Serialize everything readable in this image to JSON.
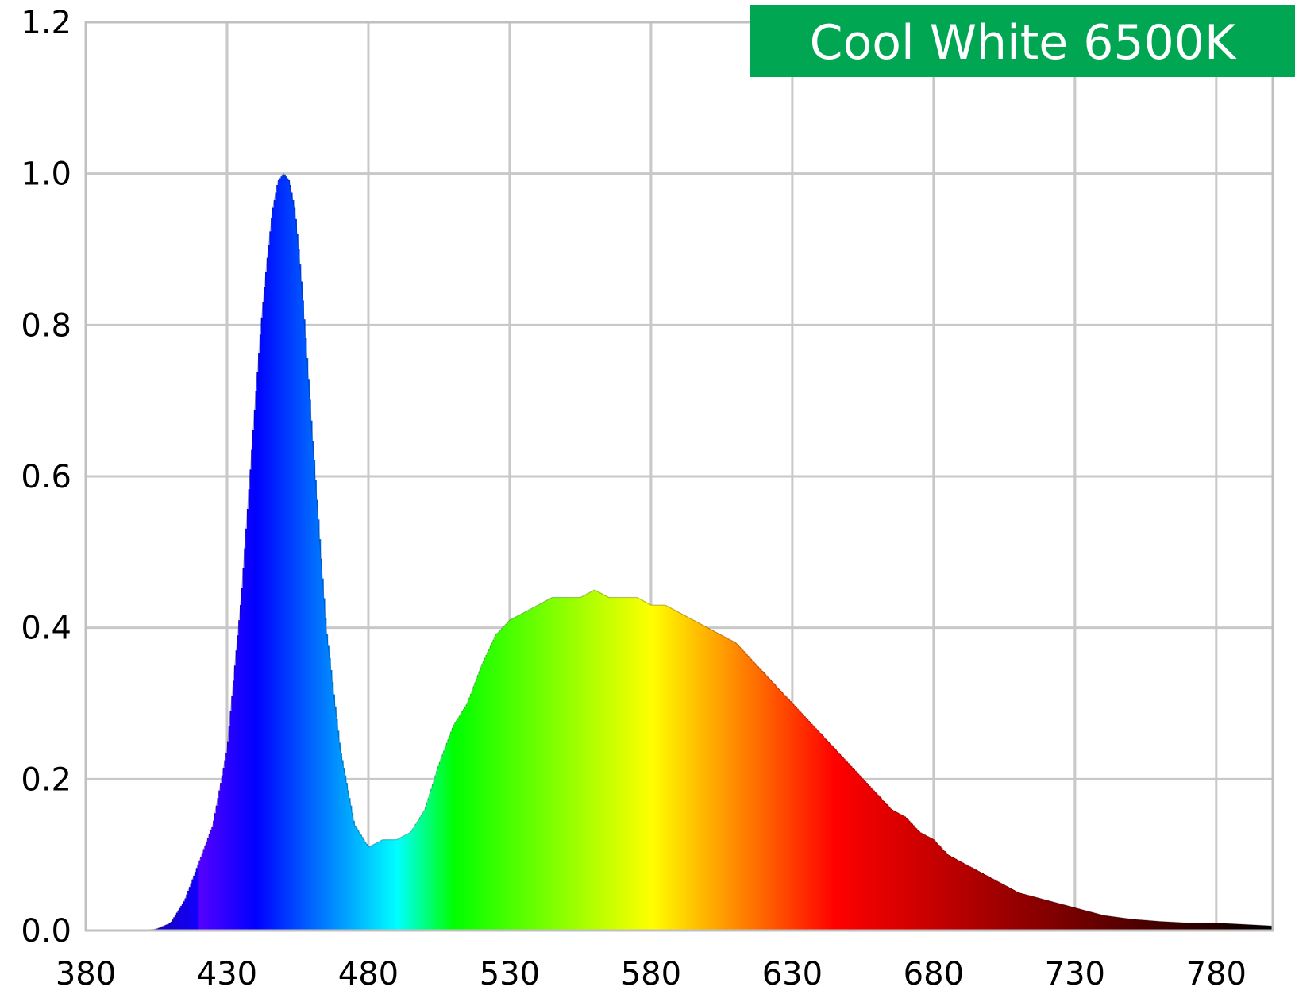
{
  "chart_data": {
    "type": "area",
    "title": "Cool White 6500K",
    "title_badge_color": "#00a651",
    "xlabel": "",
    "ylabel": "",
    "xlim": [
      380,
      800
    ],
    "ylim": [
      0,
      1.2
    ],
    "x_ticks": [
      380,
      430,
      480,
      530,
      580,
      630,
      680,
      730,
      780
    ],
    "y_ticks": [
      "0.0",
      "0.2",
      "0.4",
      "0.6",
      "0.8",
      "1.0",
      "1.2"
    ],
    "grid": true,
    "fill": "wavelength-colored spectrum",
    "series": [
      {
        "x": [
          380,
          385,
          390,
          395,
          400,
          405,
          410,
          415,
          420,
          425,
          430,
          435,
          440,
          442,
          444,
          446,
          448,
          450,
          452,
          454,
          456,
          458,
          460,
          465,
          470,
          475,
          480,
          485,
          490,
          495,
          500,
          505,
          510,
          515,
          520,
          525,
          530,
          535,
          540,
          545,
          550,
          555,
          560,
          565,
          570,
          575,
          580,
          585,
          590,
          595,
          600,
          605,
          610,
          615,
          620,
          625,
          630,
          635,
          640,
          645,
          650,
          655,
          660,
          665,
          670,
          675,
          680,
          685,
          690,
          695,
          700,
          710,
          720,
          730,
          740,
          750,
          760,
          770,
          780,
          790,
          800
        ],
        "y": [
          0.0,
          0.0,
          0.0,
          0.0,
          0.0,
          0.002,
          0.01,
          0.04,
          0.09,
          0.14,
          0.24,
          0.44,
          0.7,
          0.8,
          0.88,
          0.95,
          0.99,
          1.0,
          0.99,
          0.95,
          0.87,
          0.77,
          0.66,
          0.4,
          0.24,
          0.14,
          0.11,
          0.12,
          0.12,
          0.13,
          0.16,
          0.22,
          0.27,
          0.3,
          0.35,
          0.39,
          0.41,
          0.42,
          0.43,
          0.44,
          0.44,
          0.44,
          0.45,
          0.44,
          0.44,
          0.44,
          0.43,
          0.43,
          0.42,
          0.41,
          0.4,
          0.39,
          0.38,
          0.36,
          0.34,
          0.32,
          0.3,
          0.28,
          0.26,
          0.24,
          0.22,
          0.2,
          0.18,
          0.16,
          0.15,
          0.13,
          0.12,
          0.1,
          0.09,
          0.08,
          0.07,
          0.05,
          0.04,
          0.03,
          0.02,
          0.015,
          0.012,
          0.01,
          0.01,
          0.008,
          0.006
        ]
      }
    ]
  }
}
